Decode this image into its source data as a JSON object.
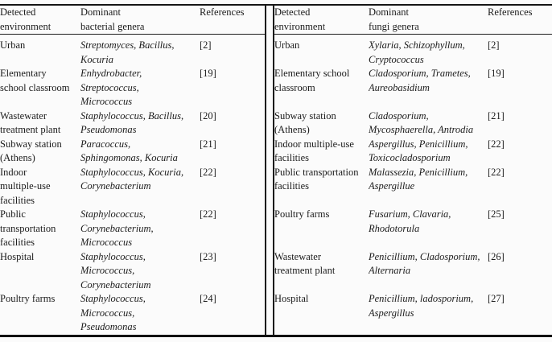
{
  "left_table": {
    "headers": {
      "environment": "Detected\nenvironment",
      "genera": "Dominant\nbacterial genera",
      "references": "References"
    },
    "rows": [
      {
        "environment": "Urban",
        "genera": "Streptomyces, Bacillus,\nKocuria",
        "reference": "[2]"
      },
      {
        "environment": "Elementary\nschool classroom",
        "genera": "Enhydrobacter,\nStreptococcus,\nMicrococcus",
        "reference": "[19]"
      },
      {
        "environment": "Wastewater\ntreatment plant",
        "genera": "Staphylococcus, Bacillus,\nPseudomonas",
        "reference": "[20]"
      },
      {
        "environment": "Subway station\n(Athens)",
        "genera": "Paracoccus,\nSphingomonas, Kocuria",
        "reference": "[21]"
      },
      {
        "environment": "Indoor\nmultiple-use\nfacilities",
        "genera": "Staphylococcus, Kocuria,\nCorynebacterium",
        "reference": "[22]"
      },
      {
        "environment": "Public\ntransportation\nfacilities",
        "genera": "Staphylococcus,\nCorynebacterium,\nMicrococcus",
        "reference": "[22]"
      },
      {
        "environment": "Hospital",
        "genera": "Staphylococcus,\nMicrococcus,\nCorynebacterium",
        "reference": "[23]"
      },
      {
        "environment": "Poultry farms",
        "genera": "Staphylococcus,\nMicrococcus,\nPseudomonas",
        "reference": "[24]"
      }
    ]
  },
  "right_table": {
    "headers": {
      "environment": "Detected\nenvironment",
      "genera": "Dominant\nfungi genera",
      "references": "References"
    },
    "rows": [
      {
        "environment": "Urban",
        "genera": "Xylaria, Schizophyllum,\nCryptococcus",
        "reference": "[2]"
      },
      {
        "environment": "Elementary school\nclassroom",
        "genera": "Cladosporium, Trametes,\nAureobasidium",
        "reference": "[19]"
      },
      {
        "environment": "Subway station\n(Athens)",
        "genera": "Cladosporium,\nMycosphaerella, Antrodia",
        "reference": "[21]"
      },
      {
        "environment": "Indoor multiple-use\nfacilities",
        "genera": "Aspergillus, Penicillium,\nToxicocladosporium",
        "reference": "[22]"
      },
      {
        "environment": "Public transportation\nfacilities",
        "genera": "Malassezia, Penicillium,\nAspergillue",
        "reference": "[22]"
      },
      {
        "environment": "Poultry farms",
        "genera": "Fusarium, Clavaria,\nRhodotorula",
        "reference": "[25]"
      },
      {
        "environment": "Wastewater\ntreatment plant",
        "genera": "Penicillium, Cladosporium,\nAlternaria",
        "reference": "[26]"
      },
      {
        "environment": "Hospital",
        "genera": "Penicillium, ladosporium,\nAspergillus",
        "reference": "[27]"
      }
    ]
  },
  "colors": {
    "text": "#1b1b1b",
    "rule": "#161616",
    "background": "#fbfbfb"
  }
}
